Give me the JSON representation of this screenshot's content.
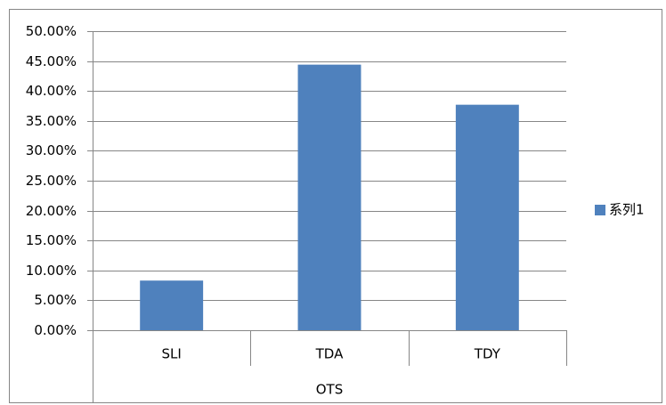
{
  "chart_data": {
    "type": "bar",
    "categories": [
      "SLI",
      "TDA",
      "TDY"
    ],
    "category_group": "OTS",
    "series": [
      {
        "name": "系列1",
        "color": "#4f81bd",
        "values": [
          8.3,
          44.4,
          37.7
        ]
      }
    ],
    "ylim": [
      0,
      50
    ],
    "yticks": [
      {
        "value": 0,
        "label": "0.00%"
      },
      {
        "value": 5,
        "label": "5.00%"
      },
      {
        "value": 10,
        "label": "10.00%"
      },
      {
        "value": 15,
        "label": "15.00%"
      },
      {
        "value": 20,
        "label": "20.00%"
      },
      {
        "value": 25,
        "label": "25.00%"
      },
      {
        "value": 30,
        "label": "30.00%"
      },
      {
        "value": 35,
        "label": "35.00%"
      },
      {
        "value": 40,
        "label": "40.00%"
      },
      {
        "value": 45,
        "label": "45.00%"
      },
      {
        "value": 50,
        "label": "50.00%"
      }
    ],
    "grid": true,
    "legend": "right"
  }
}
